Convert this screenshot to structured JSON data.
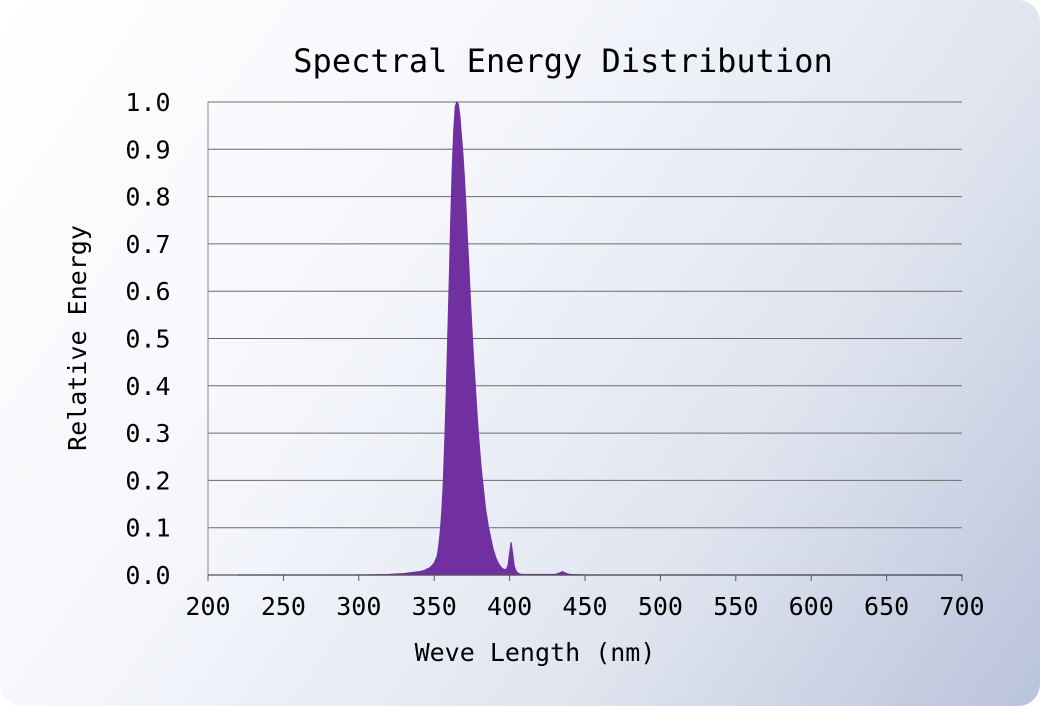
{
  "chart_data": {
    "type": "area",
    "title": "Spectral Energy Distribution",
    "xlabel": "Weve Length (nm)",
    "ylabel": "Relative Energy",
    "xlim": [
      200,
      700
    ],
    "ylim": [
      0,
      1.0
    ],
    "x_ticks": [
      200,
      250,
      300,
      350,
      400,
      450,
      500,
      550,
      600,
      650,
      700
    ],
    "x_tick_labels": [
      "200",
      "250",
      "300",
      "350",
      "400",
      "450",
      "500",
      "550",
      "600",
      "650",
      "700"
    ],
    "y_ticks": [
      0,
      0.1,
      0.2,
      0.3,
      0.4,
      0.5,
      0.6,
      0.7,
      0.8,
      0.9,
      1.0
    ],
    "y_tick_labels": [
      "0.0",
      "0.1",
      "0.2",
      "0.3",
      "0.4",
      "0.5",
      "0.6",
      "0.7",
      "0.8",
      "0.9",
      "1.0"
    ],
    "grid": true,
    "series": [
      {
        "name": "Relative Energy",
        "color": "#7030a0",
        "x": [
          220,
          300,
          320,
          330,
          335,
          340,
          343,
          345,
          347,
          348,
          350,
          352,
          353,
          354,
          355,
          356,
          357,
          358,
          359,
          360,
          361,
          362,
          363,
          364,
          365,
          366,
          367,
          368,
          369,
          370,
          371,
          372,
          373,
          374,
          375,
          376,
          377,
          378,
          379,
          380,
          381,
          382,
          383,
          384,
          385,
          386,
          387,
          388,
          389,
          390,
          391,
          392,
          393,
          394,
          395,
          396,
          397,
          398,
          399,
          400,
          401,
          402,
          403,
          404,
          405,
          406,
          407,
          408,
          410,
          412,
          415,
          420,
          430,
          433,
          435,
          437,
          440,
          450,
          500,
          600,
          700
        ],
        "y": [
          0.0,
          0.0,
          0.001,
          0.003,
          0.005,
          0.007,
          0.009,
          0.012,
          0.015,
          0.018,
          0.025,
          0.04,
          0.06,
          0.09,
          0.13,
          0.19,
          0.28,
          0.38,
          0.5,
          0.62,
          0.75,
          0.86,
          0.94,
          0.99,
          1.0,
          0.995,
          0.97,
          0.93,
          0.89,
          0.84,
          0.78,
          0.71,
          0.65,
          0.58,
          0.52,
          0.46,
          0.41,
          0.36,
          0.31,
          0.27,
          0.23,
          0.2,
          0.17,
          0.14,
          0.12,
          0.1,
          0.085,
          0.07,
          0.055,
          0.045,
          0.035,
          0.028,
          0.022,
          0.018,
          0.014,
          0.012,
          0.011,
          0.013,
          0.02,
          0.045,
          0.068,
          0.045,
          0.02,
          0.01,
          0.005,
          0.003,
          0.002,
          0.001,
          0.001,
          0.001,
          0.001,
          0.001,
          0.001,
          0.004,
          0.007,
          0.004,
          0.001,
          0.0,
          0.0,
          0.0,
          0.0
        ]
      }
    ]
  }
}
